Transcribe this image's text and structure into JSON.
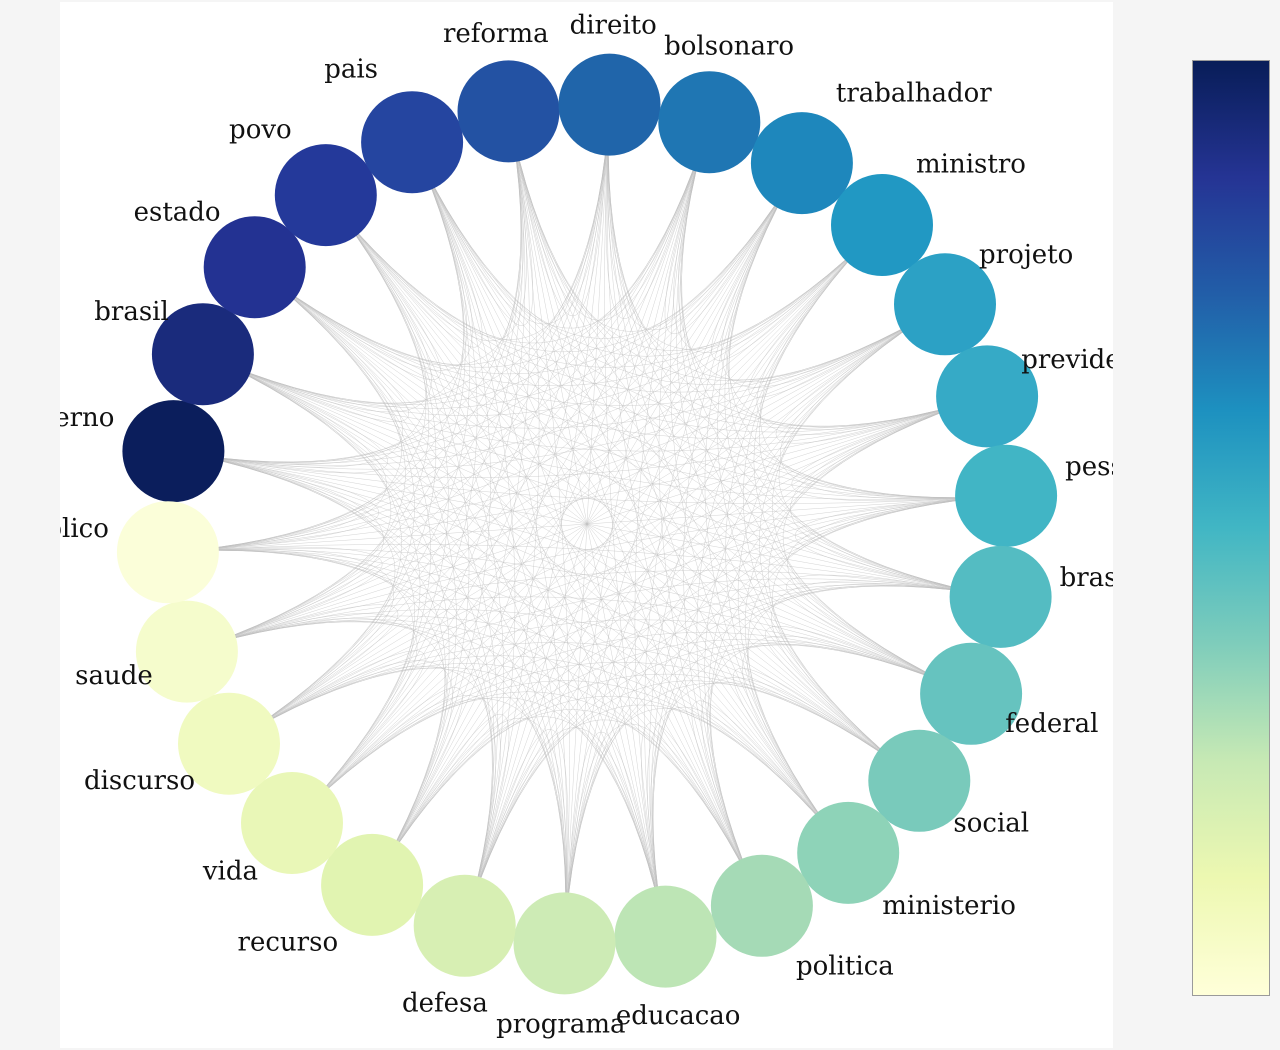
{
  "diagram": {
    "type": "circular-network",
    "edge_color": "#bdbdbd",
    "nodes": [
      {
        "label": "governo",
        "color": "#0b1e5c"
      },
      {
        "label": "brasil",
        "color": "#1a2b7c"
      },
      {
        "label": "estado",
        "color": "#233292"
      },
      {
        "label": "povo",
        "color": "#24399a"
      },
      {
        "label": "pais",
        "color": "#2545a0"
      },
      {
        "label": "reforma",
        "color": "#2352a3"
      },
      {
        "label": "direito",
        "color": "#2065aa"
      },
      {
        "label": "bolsonaro",
        "color": "#1f76b3"
      },
      {
        "label": "trabalhador",
        "color": "#1e87bc"
      },
      {
        "label": "ministro",
        "color": "#2198c3"
      },
      {
        "label": "projeto",
        "color": "#2ca1c5"
      },
      {
        "label": "previdenc",
        "color": "#36aac6"
      },
      {
        "label": "pessoas",
        "color": "#41b5c5"
      },
      {
        "label": "brasileiro",
        "color": "#54bcc2"
      },
      {
        "label": "federal",
        "color": "#66c3bf"
      },
      {
        "label": "social",
        "color": "#79cabb"
      },
      {
        "label": "ministerio",
        "color": "#8ed3b8"
      },
      {
        "label": "politica",
        "color": "#a5dab6"
      },
      {
        "label": "educacao",
        "color": "#bde5b5"
      },
      {
        "label": "programa",
        "color": "#cdebb5"
      },
      {
        "label": "defesa",
        "color": "#d7efb3"
      },
      {
        "label": "recurso",
        "color": "#e1f4b1"
      },
      {
        "label": "vida",
        "color": "#e9f7b7"
      },
      {
        "label": "discurso",
        "color": "#f0fac0"
      },
      {
        "label": "saude",
        "color": "#f5fccc"
      },
      {
        "label": "publico",
        "color": "#fbfed9"
      }
    ]
  },
  "colorbar": {
    "stops": [
      "#ffffd9",
      "#edf8b1",
      "#c7e9b4",
      "#7fcdbb",
      "#41b6c4",
      "#1d91c0",
      "#225ea8",
      "#253494",
      "#081d58"
    ]
  }
}
